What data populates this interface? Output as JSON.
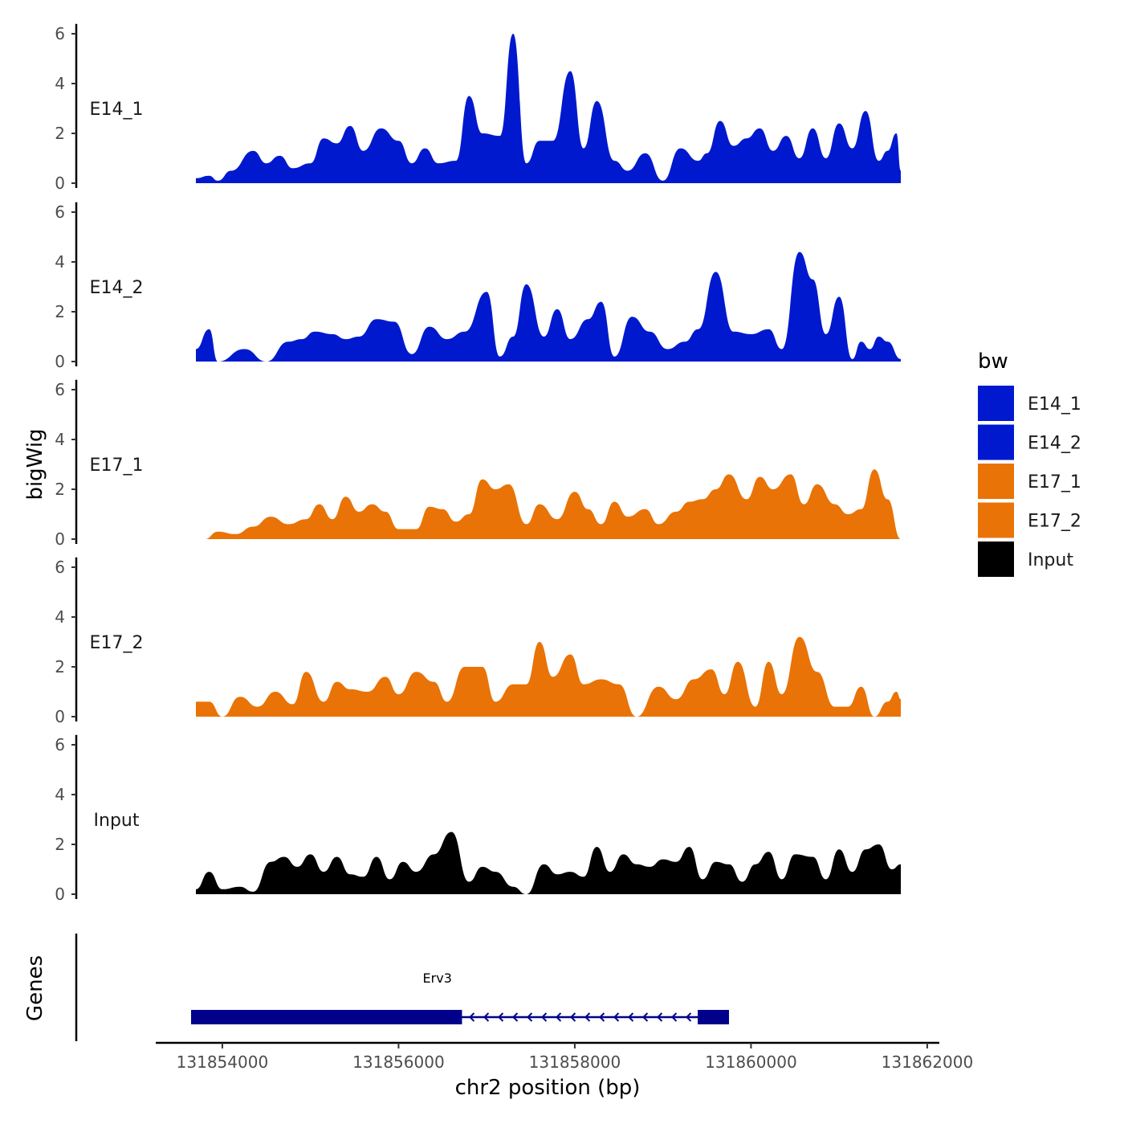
{
  "chart_data": {
    "type": "area",
    "ylabel": "bigWig",
    "xlabel": "chr2 position (bp)",
    "genes_label": "Genes",
    "ylim": [
      0,
      6.2
    ],
    "y_ticks": [
      "0",
      "2",
      "4",
      "6"
    ],
    "xlim": [
      131853700,
      131861700
    ],
    "x_ticks": [
      {
        "value": 131854000,
        "label": "131854000"
      },
      {
        "value": 131856000,
        "label": "131856000"
      },
      {
        "value": 131858000,
        "label": "131858000"
      },
      {
        "value": 131860000,
        "label": "131860000"
      },
      {
        "value": 131862000,
        "label": "131862000"
      }
    ],
    "legend": {
      "title": "bw",
      "items": [
        {
          "name": "E14_1",
          "color": "#0019CE"
        },
        {
          "name": "E14_2",
          "color": "#0019CE"
        },
        {
          "name": "E17_1",
          "color": "#E97306"
        },
        {
          "name": "E17_2",
          "color": "#E97306"
        },
        {
          "name": "Input",
          "color": "#000000"
        }
      ]
    },
    "series": [
      {
        "name": "E14_1",
        "color": "#0019CE",
        "peaks": [
          [
            131853700,
            0.2
          ],
          [
            131853850,
            0.3
          ],
          [
            131853950,
            0.1
          ],
          [
            131854100,
            0.5
          ],
          [
            131854350,
            1.3
          ],
          [
            131854500,
            0.8
          ],
          [
            131854650,
            1.1
          ],
          [
            131854800,
            0.6
          ],
          [
            131855000,
            0.8
          ],
          [
            131855150,
            1.8
          ],
          [
            131855300,
            1.6
          ],
          [
            131855450,
            2.3
          ],
          [
            131855600,
            1.3
          ],
          [
            131855800,
            2.2
          ],
          [
            131856000,
            1.7
          ],
          [
            131856150,
            0.8
          ],
          [
            131856300,
            1.4
          ],
          [
            131856450,
            0.8
          ],
          [
            131856650,
            0.9
          ],
          [
            131856800,
            3.5
          ],
          [
            131856950,
            2.0
          ],
          [
            131857150,
            1.9
          ],
          [
            131857300,
            6.0
          ],
          [
            131857450,
            0.8
          ],
          [
            131857600,
            1.7
          ],
          [
            131857750,
            1.7
          ],
          [
            131857950,
            4.5
          ],
          [
            131858100,
            1.4
          ],
          [
            131858250,
            3.3
          ],
          [
            131858450,
            0.9
          ],
          [
            131858600,
            0.5
          ],
          [
            131858800,
            1.2
          ],
          [
            131859000,
            0.1
          ],
          [
            131859200,
            1.4
          ],
          [
            131859400,
            0.9
          ],
          [
            131859500,
            1.2
          ],
          [
            131859650,
            2.5
          ],
          [
            131859800,
            1.5
          ],
          [
            131859950,
            1.8
          ],
          [
            131860100,
            2.2
          ],
          [
            131860250,
            1.3
          ],
          [
            131860400,
            1.9
          ],
          [
            131860550,
            1.0
          ],
          [
            131860700,
            2.2
          ],
          [
            131860850,
            1.0
          ],
          [
            131861000,
            2.4
          ],
          [
            131861150,
            1.4
          ],
          [
            131861300,
            2.9
          ],
          [
            131861450,
            0.9
          ],
          [
            131861550,
            1.3
          ],
          [
            131861650,
            2.0
          ],
          [
            131861700,
            0.5
          ]
        ]
      },
      {
        "name": "E14_2",
        "color": "#0019CE",
        "peaks": [
          [
            131853700,
            0.5
          ],
          [
            131853850,
            1.3
          ],
          [
            131853950,
            0.0
          ],
          [
            131854250,
            0.5
          ],
          [
            131854500,
            0.0
          ],
          [
            131854750,
            0.8
          ],
          [
            131854900,
            0.9
          ],
          [
            131855050,
            1.2
          ],
          [
            131855250,
            1.1
          ],
          [
            131855400,
            0.9
          ],
          [
            131855550,
            1.0
          ],
          [
            131855750,
            1.7
          ],
          [
            131855950,
            1.6
          ],
          [
            131856150,
            0.3
          ],
          [
            131856350,
            1.4
          ],
          [
            131856550,
            0.9
          ],
          [
            131856750,
            1.2
          ],
          [
            131857000,
            2.8
          ],
          [
            131857150,
            0.2
          ],
          [
            131857300,
            1.0
          ],
          [
            131857450,
            3.1
          ],
          [
            131857650,
            1.0
          ],
          [
            131857800,
            2.1
          ],
          [
            131857950,
            0.9
          ],
          [
            131858150,
            1.7
          ],
          [
            131858300,
            2.4
          ],
          [
            131858450,
            0.2
          ],
          [
            131858650,
            1.8
          ],
          [
            131858850,
            1.2
          ],
          [
            131859050,
            0.5
          ],
          [
            131859250,
            0.8
          ],
          [
            131859400,
            1.3
          ],
          [
            131859600,
            3.6
          ],
          [
            131859800,
            1.2
          ],
          [
            131860000,
            1.1
          ],
          [
            131860200,
            1.3
          ],
          [
            131860350,
            0.5
          ],
          [
            131860550,
            4.4
          ],
          [
            131860700,
            3.3
          ],
          [
            131860850,
            1.1
          ],
          [
            131861000,
            2.6
          ],
          [
            131861150,
            0.1
          ],
          [
            131861250,
            0.8
          ],
          [
            131861350,
            0.5
          ],
          [
            131861450,
            1.0
          ],
          [
            131861550,
            0.8
          ],
          [
            131861700,
            0.1
          ]
        ]
      },
      {
        "name": "E17_1",
        "color": "#E97306",
        "peaks": [
          [
            131853800,
            0.0
          ],
          [
            131853950,
            0.3
          ],
          [
            131854150,
            0.2
          ],
          [
            131854350,
            0.5
          ],
          [
            131854550,
            0.9
          ],
          [
            131854750,
            0.6
          ],
          [
            131854950,
            0.8
          ],
          [
            131855100,
            1.4
          ],
          [
            131855250,
            0.8
          ],
          [
            131855400,
            1.7
          ],
          [
            131855550,
            1.1
          ],
          [
            131855700,
            1.4
          ],
          [
            131855850,
            1.1
          ],
          [
            131856000,
            0.4
          ],
          [
            131856200,
            0.4
          ],
          [
            131856350,
            1.3
          ],
          [
            131856500,
            1.2
          ],
          [
            131856650,
            0.7
          ],
          [
            131856800,
            1.0
          ],
          [
            131856950,
            2.4
          ],
          [
            131857100,
            2.0
          ],
          [
            131857250,
            2.2
          ],
          [
            131857450,
            0.6
          ],
          [
            131857600,
            1.4
          ],
          [
            131857800,
            0.8
          ],
          [
            131858000,
            1.9
          ],
          [
            131858150,
            1.2
          ],
          [
            131858300,
            0.6
          ],
          [
            131858450,
            1.5
          ],
          [
            131858600,
            0.9
          ],
          [
            131858800,
            1.2
          ],
          [
            131858950,
            0.6
          ],
          [
            131859150,
            1.1
          ],
          [
            131859300,
            1.5
          ],
          [
            131859450,
            1.6
          ],
          [
            131859600,
            2.0
          ],
          [
            131859750,
            2.6
          ],
          [
            131859950,
            1.6
          ],
          [
            131860100,
            2.5
          ],
          [
            131860250,
            2.0
          ],
          [
            131860450,
            2.6
          ],
          [
            131860600,
            1.4
          ],
          [
            131860750,
            2.2
          ],
          [
            131860950,
            1.4
          ],
          [
            131861100,
            1.0
          ],
          [
            131861250,
            1.2
          ],
          [
            131861400,
            2.8
          ],
          [
            131861550,
            1.6
          ],
          [
            131861700,
            0.0
          ]
        ]
      },
      {
        "name": "E17_2",
        "color": "#E97306",
        "peaks": [
          [
            131853700,
            0.6
          ],
          [
            131853850,
            0.6
          ],
          [
            131854000,
            0.0
          ],
          [
            131854200,
            0.8
          ],
          [
            131854400,
            0.4
          ],
          [
            131854600,
            1.0
          ],
          [
            131854800,
            0.5
          ],
          [
            131854950,
            1.8
          ],
          [
            131855150,
            0.6
          ],
          [
            131855300,
            1.4
          ],
          [
            131855450,
            1.1
          ],
          [
            131855650,
            1.0
          ],
          [
            131855850,
            1.6
          ],
          [
            131856000,
            0.9
          ],
          [
            131856200,
            1.8
          ],
          [
            131856400,
            1.4
          ],
          [
            131856550,
            0.6
          ],
          [
            131856750,
            2.0
          ],
          [
            131856950,
            2.0
          ],
          [
            131857100,
            0.6
          ],
          [
            131857300,
            1.3
          ],
          [
            131857450,
            1.3
          ],
          [
            131857600,
            3.0
          ],
          [
            131857750,
            1.6
          ],
          [
            131857950,
            2.5
          ],
          [
            131858100,
            1.3
          ],
          [
            131858300,
            1.5
          ],
          [
            131858500,
            1.3
          ],
          [
            131858700,
            0.0
          ],
          [
            131858950,
            1.2
          ],
          [
            131859150,
            0.7
          ],
          [
            131859350,
            1.5
          ],
          [
            131859550,
            1.9
          ],
          [
            131859700,
            0.9
          ],
          [
            131859850,
            2.2
          ],
          [
            131860050,
            0.4
          ],
          [
            131860200,
            2.2
          ],
          [
            131860350,
            0.9
          ],
          [
            131860550,
            3.2
          ],
          [
            131860750,
            1.8
          ],
          [
            131860950,
            0.4
          ],
          [
            131861100,
            0.4
          ],
          [
            131861250,
            1.2
          ],
          [
            131861400,
            0.0
          ],
          [
            131861550,
            0.6
          ],
          [
            131861650,
            1.0
          ],
          [
            131861700,
            0.7
          ]
        ]
      },
      {
        "name": "Input",
        "color": "#000000",
        "peaks": [
          [
            131853700,
            0.2
          ],
          [
            131853850,
            0.9
          ],
          [
            131854000,
            0.2
          ],
          [
            131854200,
            0.3
          ],
          [
            131854350,
            0.1
          ],
          [
            131854550,
            1.3
          ],
          [
            131854700,
            1.5
          ],
          [
            131854850,
            1.1
          ],
          [
            131855000,
            1.6
          ],
          [
            131855150,
            0.9
          ],
          [
            131855300,
            1.5
          ],
          [
            131855450,
            0.8
          ],
          [
            131855600,
            0.7
          ],
          [
            131855750,
            1.5
          ],
          [
            131855900,
            0.6
          ],
          [
            131856050,
            1.3
          ],
          [
            131856200,
            0.9
          ],
          [
            131856400,
            1.6
          ],
          [
            131856600,
            2.5
          ],
          [
            131856800,
            0.5
          ],
          [
            131856950,
            1.1
          ],
          [
            131857100,
            0.9
          ],
          [
            131857300,
            0.3
          ],
          [
            131857450,
            0.0
          ],
          [
            131857650,
            1.2
          ],
          [
            131857800,
            0.8
          ],
          [
            131857950,
            0.9
          ],
          [
            131858100,
            0.7
          ],
          [
            131858250,
            1.9
          ],
          [
            131858400,
            0.9
          ],
          [
            131858550,
            1.6
          ],
          [
            131858700,
            1.2
          ],
          [
            131858850,
            1.1
          ],
          [
            131859000,
            1.4
          ],
          [
            131859150,
            1.3
          ],
          [
            131859300,
            1.9
          ],
          [
            131859450,
            0.6
          ],
          [
            131859600,
            1.3
          ],
          [
            131859750,
            1.2
          ],
          [
            131859900,
            0.5
          ],
          [
            131860050,
            1.2
          ],
          [
            131860200,
            1.7
          ],
          [
            131860350,
            0.6
          ],
          [
            131860500,
            1.6
          ],
          [
            131860700,
            1.5
          ],
          [
            131860850,
            0.6
          ],
          [
            131861000,
            1.8
          ],
          [
            131861150,
            0.9
          ],
          [
            131861300,
            1.8
          ],
          [
            131861450,
            2.0
          ],
          [
            131861600,
            1.0
          ],
          [
            131861700,
            1.2
          ]
        ]
      }
    ],
    "genes": [
      {
        "name": "Erv3",
        "start": 131853700,
        "end": 131859750,
        "strand": "-",
        "exons": [
          [
            131853700,
            131856720
          ],
          [
            131859450,
            131859750
          ]
        ]
      }
    ]
  }
}
